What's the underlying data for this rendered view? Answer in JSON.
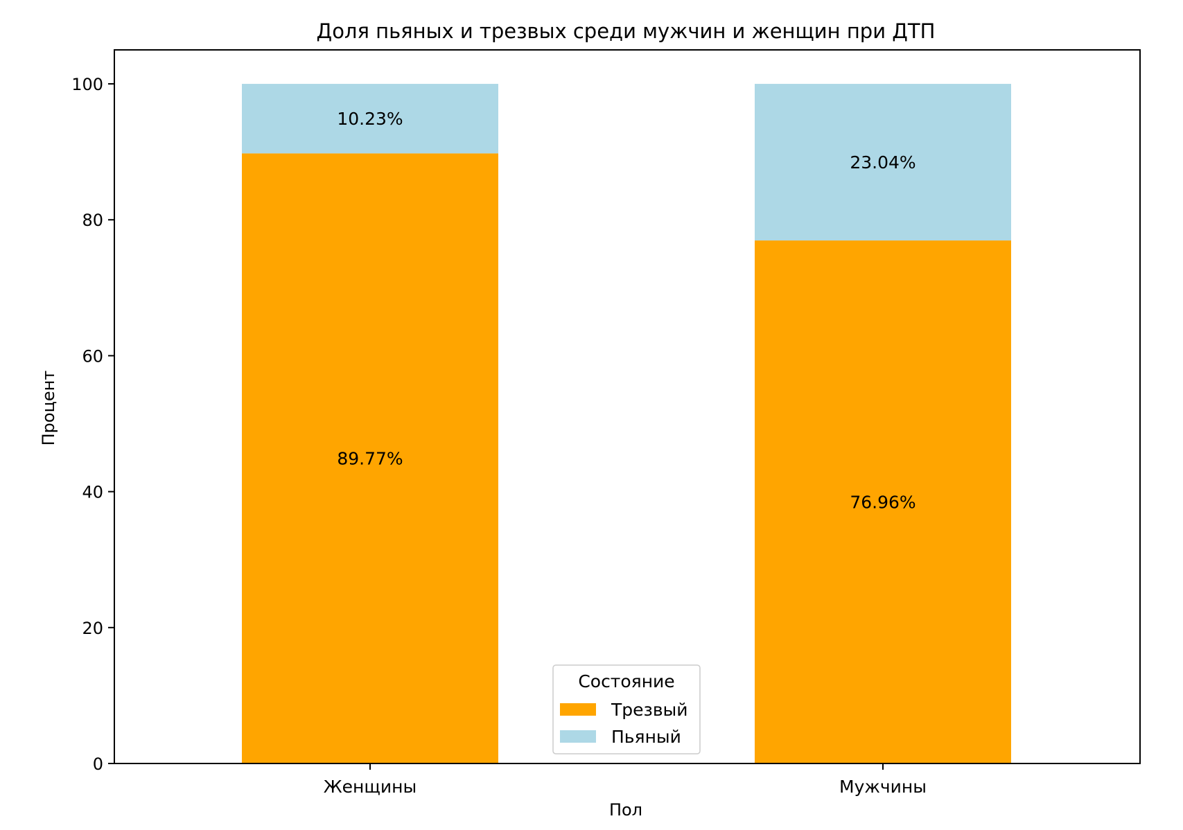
{
  "chart_data": {
    "type": "bar",
    "stacked": true,
    "title": "Доля пьяных и трезвых среди мужчин и женщин при ДТП",
    "xlabel": "Пол",
    "ylabel": "Процент",
    "ylim": [
      0,
      105
    ],
    "yticks": [
      0,
      20,
      40,
      60,
      80,
      100
    ],
    "categories": [
      "Женщины",
      "Мужчины"
    ],
    "series": [
      {
        "name": "Трезвый",
        "color": "#ffa500",
        "values": [
          89.77,
          76.96
        ],
        "labels": [
          "89.77%",
          "76.96%"
        ]
      },
      {
        "name": "Пьяный",
        "color": "#add8e6",
        "values": [
          10.23,
          23.04
        ],
        "labels": [
          "10.23%",
          "23.04%"
        ]
      }
    ],
    "legend": {
      "title": "Состояние",
      "position": "bottom-center"
    },
    "grid": false
  }
}
